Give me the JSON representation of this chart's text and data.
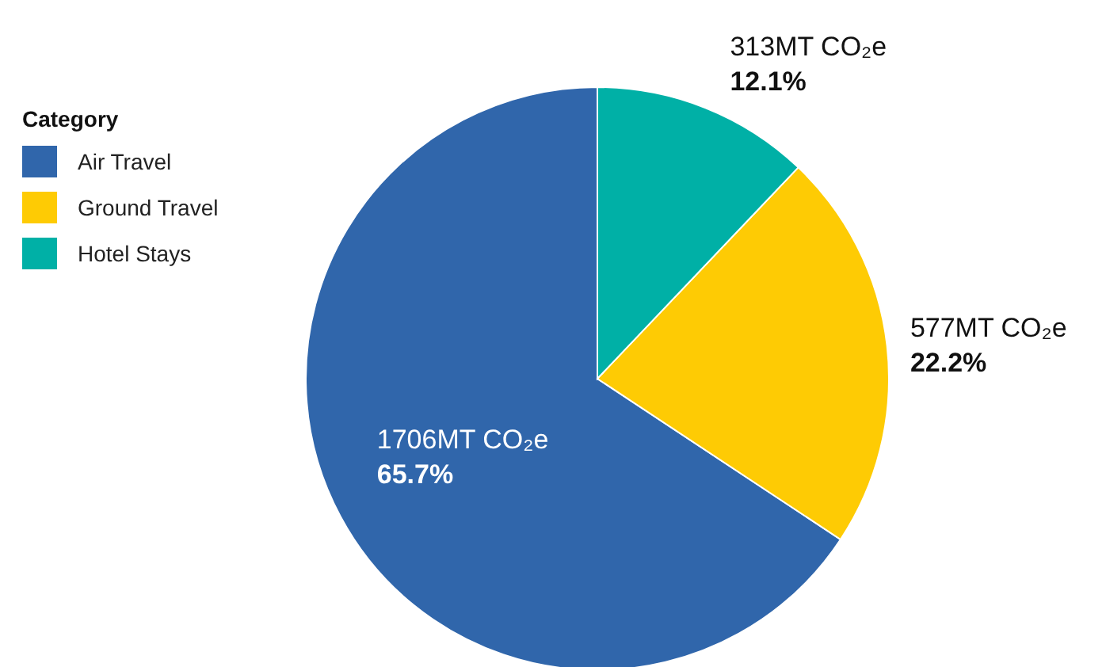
{
  "chart_data": {
    "type": "pie",
    "legend_title": "Category",
    "categories": [
      "Air Travel",
      "Ground Travel",
      "Hotel Stays"
    ],
    "values": [
      65.7,
      22.2,
      12.1
    ],
    "colors": [
      "#3066ab",
      "#fecb04",
      "#00b0a6"
    ],
    "value_labels": [
      "1706MT CO₂e\n65.7%",
      "577MT CO₂e\n22.2%",
      "313MT CO₂e\n12.1%"
    ],
    "legend": "top left"
  }
}
